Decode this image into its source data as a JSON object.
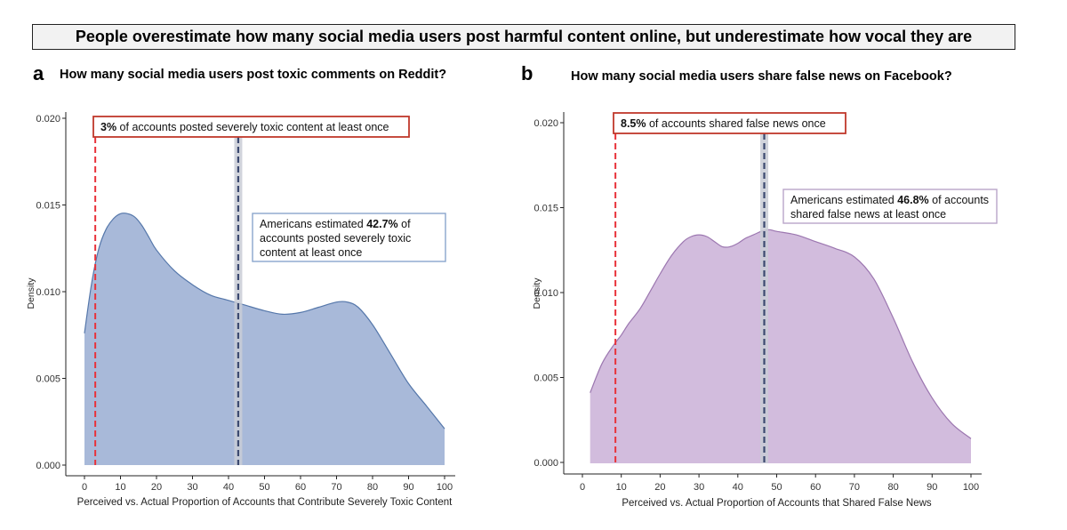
{
  "headline": "People overestimate how many social media users post harmful content online, but underestimate how vocal they are",
  "colors": {
    "reddit_fill": "#a8b9d9",
    "reddit_line": "#5577aa",
    "facebook_fill": "#d2bcdd",
    "facebook_line": "#9c77b0",
    "actual_line": "#e8323a",
    "estimate_line": "#3c4a70",
    "estimate_band": "#c9ccd6",
    "actual_box": "#c0392b",
    "estimate_box_reddit": "#8aa6cc",
    "estimate_box_facebook": "#b9a5c9"
  },
  "chart_data": [
    {
      "panel": "a",
      "type": "area",
      "title": "How many social media users post toxic comments on Reddit?",
      "xlabel": "Perceived vs. Actual Proportion of Accounts that Contribute Severely Toxic Content",
      "ylabel": "Density",
      "xlim": [
        0,
        100
      ],
      "ylim": [
        0,
        0.02
      ],
      "xticks": [
        "0",
        "10",
        "20",
        "30",
        "40",
        "50",
        "60",
        "70",
        "80",
        "90",
        "100"
      ],
      "yticks": [
        "0.000",
        "0.005",
        "0.010",
        "0.015",
        "0.020"
      ],
      "x": [
        0,
        2,
        4,
        6,
        8,
        10,
        12,
        14,
        16,
        18,
        20,
        25,
        30,
        35,
        40,
        45,
        50,
        55,
        60,
        65,
        70,
        73,
        76,
        80,
        85,
        90,
        95,
        100
      ],
      "y": [
        0.0076,
        0.0105,
        0.0125,
        0.0136,
        0.0142,
        0.0145,
        0.0145,
        0.0143,
        0.0138,
        0.0131,
        0.0124,
        0.0112,
        0.0104,
        0.0098,
        0.0095,
        0.0092,
        0.0089,
        0.0087,
        0.0088,
        0.0091,
        0.0094,
        0.0094,
        0.0091,
        0.0081,
        0.0064,
        0.0047,
        0.0034,
        0.0021
      ],
      "actual_value": 3,
      "estimate_value": 42.7,
      "actual_note": {
        "bold": "3%",
        "rest": " of accounts posted severely toxic content at least once"
      },
      "estimate_note": {
        "prefix": "Americans estimated ",
        "bold": "42.7%",
        "suffix": " of",
        "line2": "accounts posted severely toxic",
        "line3": "content at least once"
      }
    },
    {
      "panel": "b",
      "type": "area",
      "title": "How many social media users share false news on Facebook?",
      "xlabel": "Perceived vs. Actual Proportion of Accounts that Shared False News",
      "ylabel": "Density",
      "xlim": [
        0,
        100
      ],
      "ylim": [
        0,
        0.02
      ],
      "xticks": [
        "0",
        "10",
        "20",
        "30",
        "40",
        "50",
        "60",
        "70",
        "80",
        "90",
        "100"
      ],
      "yticks": [
        "0.000",
        "0.005",
        "0.010",
        "0.015",
        "0.020"
      ],
      "x": [
        2,
        5,
        8,
        10,
        12,
        15,
        18,
        20,
        23,
        26,
        28,
        30,
        32,
        34,
        36,
        38,
        40,
        42,
        44,
        46,
        48,
        50,
        55,
        60,
        65,
        70,
        75,
        80,
        85,
        90,
        95,
        100
      ],
      "y": [
        0.0041,
        0.0058,
        0.0069,
        0.0075,
        0.0082,
        0.0091,
        0.0103,
        0.0111,
        0.0122,
        0.013,
        0.0133,
        0.0134,
        0.0133,
        0.013,
        0.0127,
        0.0127,
        0.0129,
        0.0132,
        0.0134,
        0.0136,
        0.0137,
        0.0136,
        0.0134,
        0.013,
        0.0126,
        0.0121,
        0.0108,
        0.0085,
        0.0059,
        0.0038,
        0.0023,
        0.0014
      ],
      "actual_value": 8.5,
      "estimate_value": 46.8,
      "actual_note": {
        "bold": "8.5%",
        "rest": " of accounts shared false news once"
      },
      "estimate_note": {
        "prefix": "Americans estimated ",
        "bold": "46.8%",
        "suffix": " of accounts",
        "line2": "shared false news at least once"
      }
    }
  ]
}
